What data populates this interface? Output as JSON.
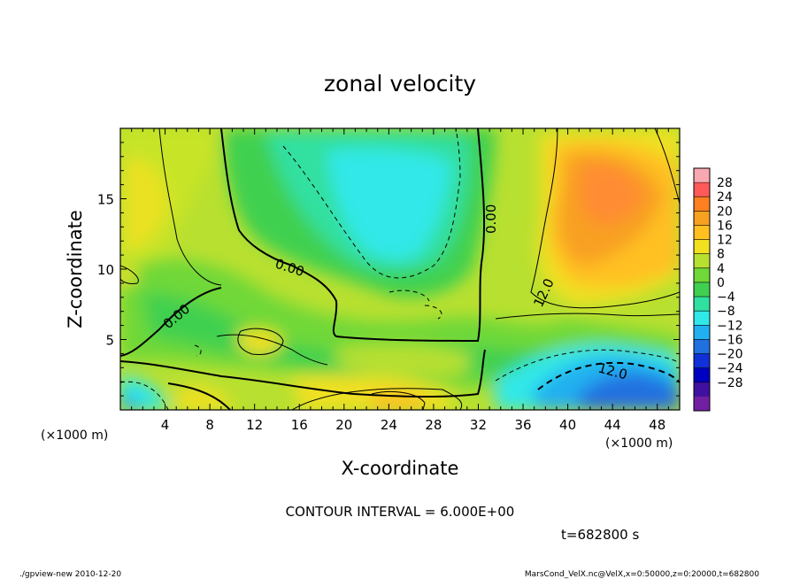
{
  "chart_data": {
    "type": "heatmap",
    "title": "zonal velocity",
    "xlabel": "X-coordinate",
    "ylabel": "Z-coordinate",
    "x_unit": "(×1000 m)",
    "y_unit": "(×1000 m)",
    "xlim": [
      0,
      50
    ],
    "ylim": [
      0,
      20
    ],
    "x_ticks": [
      4,
      8,
      12,
      16,
      20,
      24,
      28,
      32,
      36,
      40,
      44,
      48
    ],
    "y_ticks": [
      5,
      10,
      15
    ],
    "colorbar": {
      "labels": [
        28,
        24,
        20,
        16,
        12,
        8,
        4,
        0,
        -4,
        -8,
        -12,
        -16,
        -20,
        -24,
        -28
      ],
      "colors": [
        "#f8a8b0",
        "#ff5a5a",
        "#ff8020",
        "#f8a020",
        "#ffc020",
        "#f0e020",
        "#b8e030",
        "#70d838",
        "#40d050",
        "#30e0a0",
        "#30e8e8",
        "#20b0f0",
        "#2070e0",
        "#1030d8",
        "#0000c0",
        "#4010a0",
        "#7020a0"
      ]
    },
    "contour_labels": [
      "0.00",
      "0.00",
      "0.00",
      "12.0",
      "12.0"
    ],
    "contour_interval_text": "CONTOUR INTERVAL = 6.000E+00",
    "time_text": "t=682800 s"
  },
  "footer": {
    "left": "./gpview-new   2010-12-20",
    "right": "MarsCond_VelX.nc@VelX,x=0:50000,z=0:20000,t=682800"
  }
}
